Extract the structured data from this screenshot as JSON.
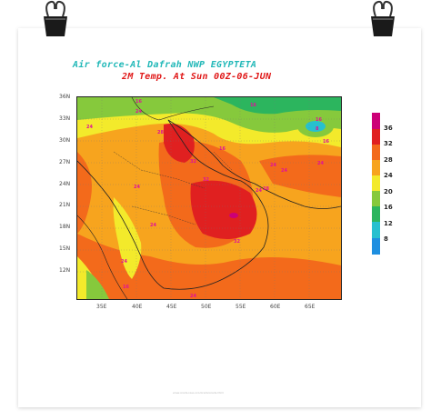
{
  "header": {
    "title_line1": "Air force-Al Dafrah NWP EGYPTETA",
    "title_line2": "2M Temp. At Sun 00Z-06-JUN"
  },
  "map": {
    "lat_labels": [
      "36N",
      "33N",
      "30N",
      "27N",
      "24N",
      "21N",
      "18N",
      "15N",
      "12N"
    ],
    "lon_labels": [
      "35E",
      "40E",
      "45E",
      "50E",
      "55E",
      "60E",
      "65E"
    ],
    "contour_labels": [
      "16",
      "16",
      "24",
      "24",
      "28",
      "16",
      "16",
      "16",
      "8",
      "32",
      "24",
      "24",
      "32",
      "24",
      "24",
      "28",
      "32",
      "24",
      "24",
      "24",
      "16",
      "24"
    ]
  },
  "legend": {
    "levels": [
      {
        "label": "36",
        "color": "#cc0077"
      },
      {
        "label": "32",
        "color": "#e02020"
      },
      {
        "label": "28",
        "color": "#f36a1b"
      },
      {
        "label": "24",
        "color": "#f7a41e"
      },
      {
        "label": "20",
        "color": "#f3ea2b"
      },
      {
        "label": "16",
        "color": "#86c93c"
      },
      {
        "label": "12",
        "color": "#2cb55e"
      },
      {
        "label": "8",
        "color": "#27c0cf"
      },
      {
        "label": "",
        "color": "#1e8fe0"
      }
    ]
  },
  "footer": {
    "text": "www.grads.iges.org/grads/grads.html"
  },
  "colors": {
    "title1": "#22b8b8",
    "title2": "#e01818",
    "contour_label": "#e0109a"
  }
}
